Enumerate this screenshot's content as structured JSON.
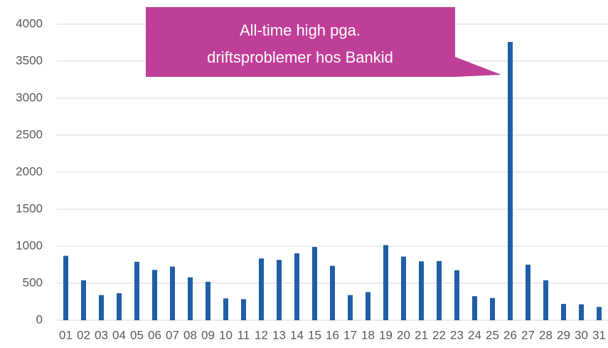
{
  "chart_data": {
    "type": "bar",
    "annotation": [
      "All-time high pga.",
      "driftsproblemer hos Bankid"
    ],
    "categories": [
      "01",
      "02",
      "03",
      "04",
      "05",
      "06",
      "07",
      "08",
      "09",
      "10",
      "11",
      "12",
      "13",
      "14",
      "15",
      "16",
      "17",
      "18",
      "19",
      "20",
      "21",
      "22",
      "23",
      "24",
      "25",
      "26",
      "27",
      "28",
      "29",
      "30",
      "31"
    ],
    "values": [
      870,
      540,
      340,
      365,
      790,
      680,
      725,
      580,
      520,
      295,
      285,
      835,
      815,
      905,
      990,
      735,
      340,
      380,
      1015,
      860,
      795,
      800,
      675,
      325,
      300,
      3760,
      750,
      540,
      220,
      215,
      180
    ],
    "color": "#1f5fa6",
    "annotation_color": "#bf3f98",
    "ylim": [
      0,
      4000
    ],
    "yticks": [
      0,
      500,
      1000,
      1500,
      2000,
      2500,
      3000,
      3500,
      4000
    ],
    "grid": true
  }
}
